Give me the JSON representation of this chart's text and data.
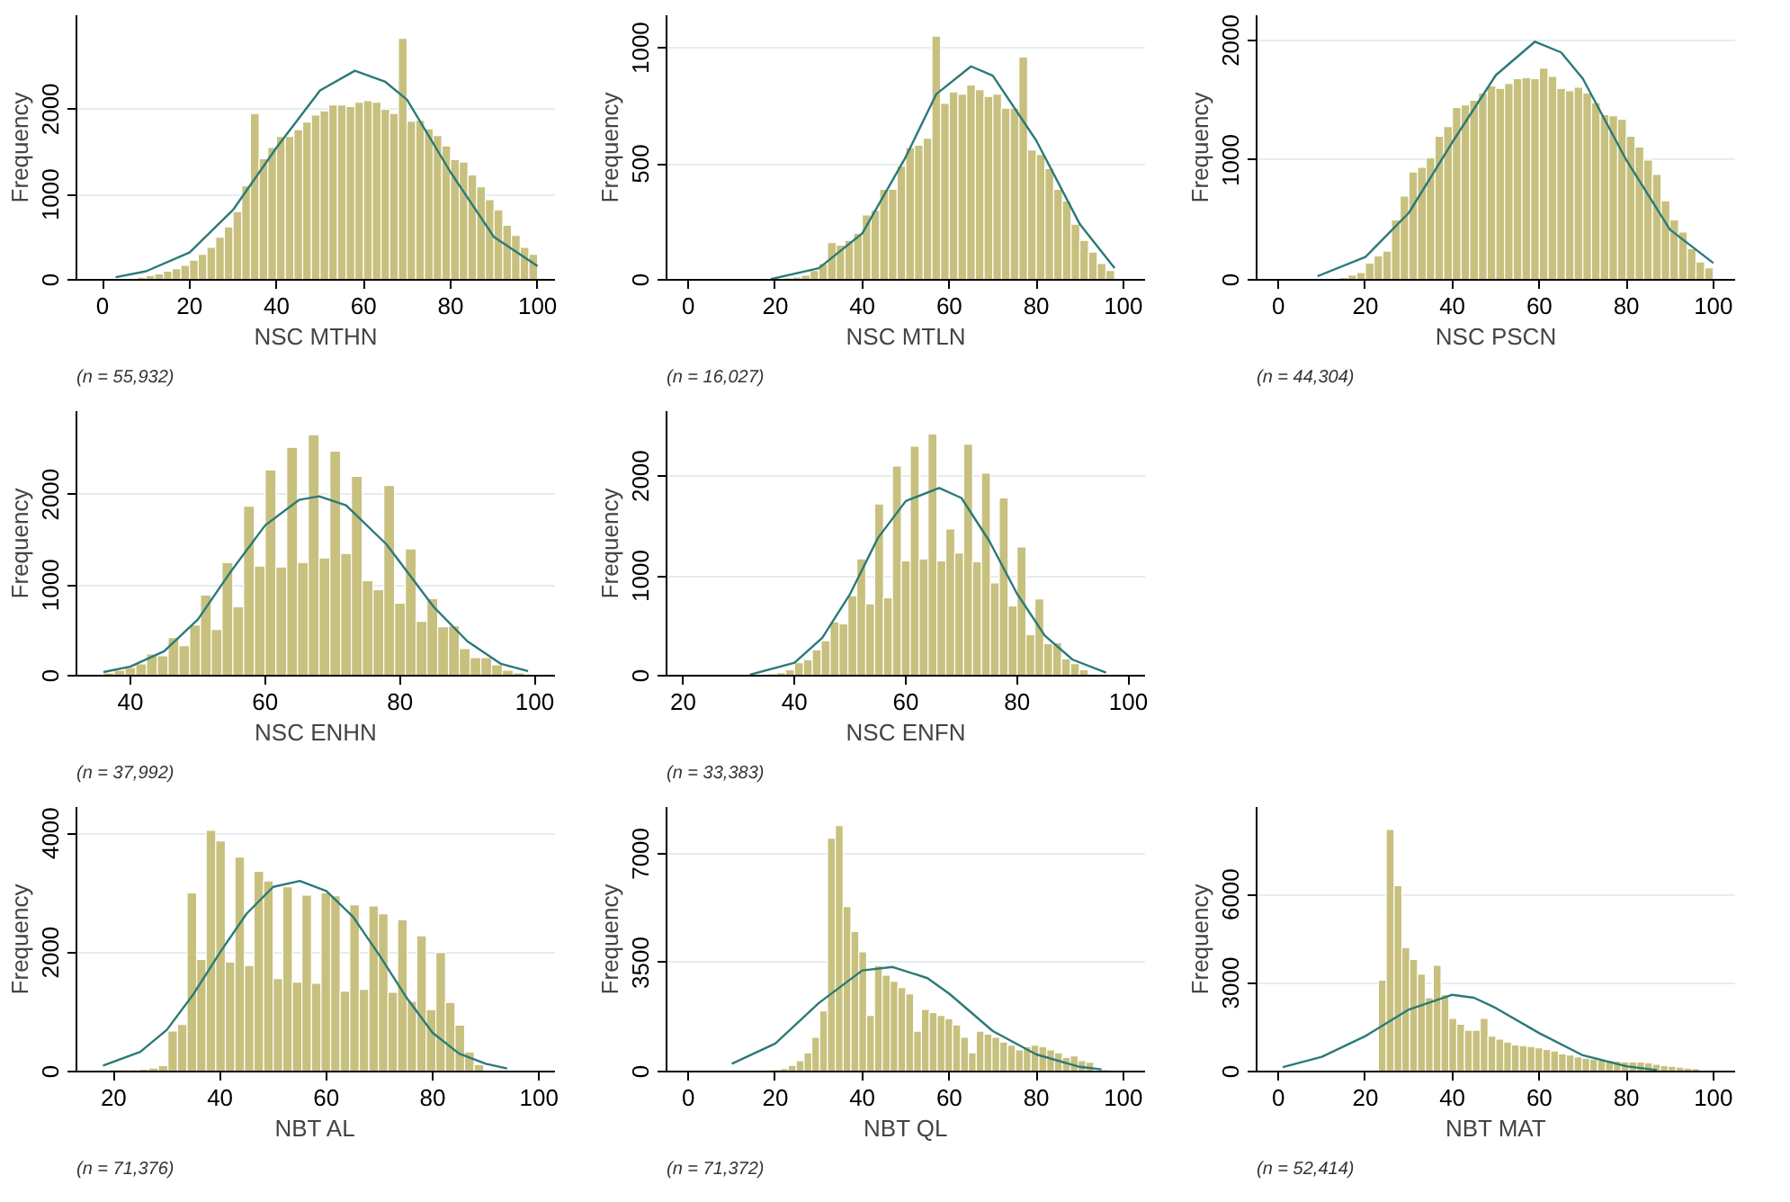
{
  "chart_data": [
    {
      "type": "histogram",
      "xlabel": "NSC MTHN",
      "ylabel": "Frequency",
      "annotations": [
        "(n = 55,932)"
      ],
      "xlim": [
        -6,
        104
      ],
      "ylim": [
        0,
        3100
      ],
      "xticks": [
        0,
        20,
        40,
        60,
        80,
        100
      ],
      "yticks": [
        0,
        1000,
        2000
      ],
      "grid": "y",
      "series": [
        {
          "type": "histogram",
          "color": "#c8c07e",
          "bins": [
            4,
            6,
            8,
            10,
            12,
            14,
            16,
            18,
            20,
            22,
            24,
            26,
            28,
            30,
            32,
            34,
            36,
            38,
            40,
            42,
            44,
            46,
            48,
            50,
            52,
            54,
            56,
            58,
            60,
            62,
            64,
            66,
            68,
            70,
            72,
            74,
            76,
            78,
            80,
            82,
            84,
            86,
            88,
            90,
            92,
            94,
            96,
            98,
            100
          ],
          "values": [
            10,
            null,
            30,
            50,
            70,
            100,
            130,
            170,
            230,
            300,
            380,
            500,
            620,
            800,
            1100,
            1950,
            1420,
            1550,
            1680,
            1680,
            1760,
            1850,
            1930,
            1980,
            2050,
            2050,
            2030,
            2080,
            2100,
            2080,
            2000,
            1950,
            2830,
            1860,
            1870,
            1770,
            1690,
            1570,
            1410,
            1380,
            1230,
            1090,
            940,
            820,
            640,
            520,
            380,
            300
          ]
        },
        {
          "type": "line",
          "color": "#2a7a78",
          "x": [
            3,
            10,
            20,
            30,
            40,
            50,
            58,
            65,
            70,
            80,
            90,
            100
          ],
          "values": [
            30,
            100,
            320,
            820,
            1550,
            2220,
            2450,
            2320,
            2110,
            1260,
            500,
            160
          ]
        }
      ]
    },
    {
      "type": "histogram",
      "xlabel": "NSC MTLN",
      "ylabel": "Frequency",
      "annotations": [
        "(n = 16,027)"
      ],
      "xlim": [
        -5,
        105
      ],
      "ylim": [
        0,
        1140
      ],
      "xticks": [
        0,
        20,
        40,
        60,
        80,
        100
      ],
      "yticks": [
        0,
        500,
        1000
      ],
      "grid": "y",
      "series": [
        {
          "type": "histogram",
          "color": "#c8c07e",
          "bins": [
            20,
            22,
            24,
            26,
            28,
            30,
            32,
            34,
            36,
            38,
            40,
            42,
            44,
            46,
            48,
            50,
            52,
            54,
            56,
            58,
            60,
            62,
            64,
            66,
            68,
            70,
            72,
            74,
            76,
            78,
            80,
            82,
            84,
            86,
            88,
            90,
            92,
            94,
            96,
            98
          ],
          "values": [
            3,
            8,
            12,
            20,
            40,
            70,
            160,
            150,
            170,
            200,
            280,
            300,
            390,
            390,
            490,
            570,
            580,
            610,
            1050,
            760,
            810,
            800,
            840,
            820,
            790,
            800,
            740,
            740,
            960,
            560,
            540,
            480,
            390,
            340,
            240,
            170,
            120,
            70,
            40
          ]
        },
        {
          "type": "line",
          "color": "#2a7a78",
          "x": [
            19,
            30,
            40,
            50,
            57,
            65,
            70,
            80,
            90,
            98
          ],
          "values": [
            3,
            50,
            200,
            530,
            800,
            920,
            880,
            600,
            240,
            50
          ]
        }
      ]
    },
    {
      "type": "histogram",
      "xlabel": "NSC PSCN",
      "ylabel": "Frequency",
      "annotations": [
        "(n = 44,304)"
      ],
      "xlim": [
        -5,
        105
      ],
      "ylim": [
        0,
        2210
      ],
      "xticks": [
        0,
        20,
        40,
        60,
        80,
        100
      ],
      "yticks": [
        0,
        1000,
        2000
      ],
      "grid": "y",
      "series": [
        {
          "type": "histogram",
          "color": "#c8c07e",
          "bins": [
            12,
            14,
            16,
            18,
            20,
            22,
            24,
            26,
            28,
            30,
            32,
            34,
            36,
            38,
            40,
            42,
            44,
            46,
            48,
            50,
            52,
            54,
            56,
            58,
            60,
            62,
            64,
            66,
            68,
            70,
            72,
            74,
            76,
            78,
            80,
            82,
            84,
            86,
            88,
            90,
            92,
            94,
            96,
            98,
            100
          ],
          "values": [
            10,
            20,
            40,
            60,
            140,
            200,
            240,
            500,
            700,
            900,
            940,
            1020,
            1200,
            1280,
            1440,
            1460,
            1500,
            1560,
            1620,
            1600,
            1640,
            1680,
            1690,
            1680,
            1770,
            1700,
            1600,
            1580,
            1610,
            1560,
            1480,
            1380,
            1370,
            1340,
            1200,
            1110,
            1000,
            880,
            660,
            500,
            400,
            260,
            150,
            100
          ]
        },
        {
          "type": "line",
          "color": "#2a7a78",
          "x": [
            9,
            20,
            30,
            40,
            50,
            59,
            65,
            70,
            80,
            90,
            100
          ],
          "values": [
            30,
            190,
            560,
            1150,
            1710,
            1990,
            1900,
            1680,
            1000,
            420,
            140
          ]
        }
      ]
    },
    {
      "type": "histogram",
      "xlabel": "NSC ENHN",
      "ylabel": "Frequency",
      "annotations": [
        "(n = 37,992)"
      ],
      "xlim": [
        32,
        103
      ],
      "ylim": [
        0,
        2920
      ],
      "xticks": [
        40,
        60,
        80,
        100
      ],
      "yticks": [
        0,
        1000,
        2000
      ],
      "grid": "y",
      "series": [
        {
          "type": "histogram",
          "color": "#c8c07e",
          "bins": [
            36,
            37.6,
            39.2,
            40.8,
            42.4,
            44,
            45.6,
            47.2,
            48.8,
            50.4,
            52,
            53.6,
            55.2,
            56.8,
            58.4,
            60,
            61.6,
            63.2,
            64.8,
            66.4,
            68,
            69.6,
            71.2,
            72.8,
            74.4,
            76,
            77.6,
            79.2,
            80.8,
            82.4,
            84,
            85.6,
            87.2,
            88.8,
            90.4,
            92,
            93.6,
            95.2,
            96.8,
            98.4
          ],
          "values": [
            30,
            60,
            90,
            130,
            240,
            220,
            420,
            330,
            560,
            890,
            510,
            1250,
            760,
            1870,
            1210,
            2270,
            1200,
            2520,
            1250,
            2660,
            1300,
            2480,
            1350,
            2200,
            1050,
            950,
            2100,
            800,
            1400,
            600,
            850,
            540,
            550,
            300,
            200,
            200,
            120,
            60,
            30
          ]
        },
        {
          "type": "line",
          "color": "#2a7a78",
          "x": [
            36,
            40,
            45,
            50,
            55,
            60,
            65,
            68,
            72,
            78,
            85,
            90,
            95,
            99
          ],
          "values": [
            40,
            100,
            270,
            620,
            1160,
            1660,
            1940,
            1980,
            1880,
            1450,
            760,
            380,
            130,
            50
          ]
        }
      ]
    },
    {
      "type": "histogram",
      "xlabel": "NSC ENFN",
      "ylabel": "Frequency",
      "annotations": [
        "(n = 33,383)"
      ],
      "xlim": [
        17,
        103
      ],
      "ylim": [
        0,
        2650
      ],
      "xticks": [
        20,
        40,
        60,
        80,
        100
      ],
      "yticks": [
        0,
        1000,
        2000
      ],
      "grid": "y",
      "series": [
        {
          "type": "histogram",
          "color": "#c8c07e",
          "bins": [
            33.6,
            35.2,
            36.8,
            38.4,
            40,
            41.6,
            43.2,
            44.8,
            46.4,
            48,
            49.6,
            51.2,
            52.8,
            54.4,
            56,
            57.6,
            59.2,
            60.8,
            62.4,
            64,
            65.6,
            67.2,
            68.8,
            70.4,
            72,
            73.6,
            75.2,
            76.8,
            78.4,
            80,
            81.6,
            83.2,
            84.8,
            86.4,
            88,
            89.6,
            91.2,
            92.8
          ],
          "values": [
            10,
            20,
            30,
            60,
            130,
            160,
            260,
            350,
            540,
            520,
            800,
            1170,
            720,
            1720,
            780,
            2100,
            1150,
            2300,
            1170,
            2420,
            1150,
            1470,
            1230,
            2320,
            1140,
            2030,
            930,
            1780,
            700,
            1290,
            410,
            770,
            320,
            330,
            170,
            120,
            60
          ]
        },
        {
          "type": "line",
          "color": "#2a7a78",
          "x": [
            32,
            40,
            45,
            50,
            55,
            60,
            66,
            70,
            75,
            80,
            85,
            90,
            96
          ],
          "values": [
            10,
            130,
            380,
            820,
            1380,
            1750,
            1880,
            1780,
            1350,
            820,
            400,
            160,
            30
          ]
        }
      ]
    },
    {
      "type": "histogram",
      "xlabel": "NBT AL",
      "ylabel": "Frequency",
      "annotations": [
        "(n = 71,376)"
      ],
      "xlim": [
        13,
        103
      ],
      "ylim": [
        0,
        4440
      ],
      "xticks": [
        20,
        40,
        60,
        80,
        100
      ],
      "yticks": [
        0,
        2000,
        4000
      ],
      "grid": "y",
      "series": [
        {
          "type": "histogram",
          "color": "#c8c07e",
          "bins": [
            19.4,
            21.2,
            23,
            24.8,
            26.6,
            28.4,
            30.2,
            32,
            33.8,
            35.6,
            37.4,
            39.2,
            41,
            42.8,
            44.6,
            46.4,
            48.2,
            50,
            51.8,
            53.6,
            55.4,
            57.2,
            59,
            60.8,
            62.6,
            64.4,
            66.2,
            68,
            69.8,
            71.6,
            73.4,
            75.2,
            77,
            78.8,
            80.6,
            82.4,
            84.2,
            86,
            87.8,
            89.6
          ],
          "values": [
            30,
            30,
            30,
            40,
            60,
            100,
            680,
            790,
            3000,
            1880,
            4050,
            3870,
            1840,
            3600,
            1780,
            3360,
            3200,
            1560,
            3100,
            1500,
            2960,
            1480,
            3000,
            2950,
            1350,
            2800,
            1380,
            2780,
            2650,
            1330,
            2550,
            1180,
            2280,
            1040,
            2000,
            1160,
            780,
            330,
            120
          ]
        },
        {
          "type": "line",
          "color": "#2a7a78",
          "x": [
            18,
            25,
            30,
            35,
            40,
            45,
            50,
            55,
            60,
            65,
            70,
            75,
            80,
            85,
            90,
            94
          ],
          "values": [
            100,
            330,
            700,
            1300,
            2000,
            2650,
            3100,
            3200,
            3030,
            2600,
            1950,
            1250,
            650,
            300,
            130,
            50
          ]
        }
      ]
    },
    {
      "type": "histogram",
      "xlabel": "NBT QL",
      "ylabel": "Frequency",
      "annotations": [
        "(n = 71,372)"
      ],
      "xlim": [
        -5,
        105
      ],
      "ylim": [
        0,
        8500
      ],
      "xticks": [
        0,
        20,
        40,
        60,
        80,
        100
      ],
      "yticks": [
        0,
        3500,
        7000
      ],
      "grid": "y",
      "series": [
        {
          "type": "histogram",
          "color": "#c8c07e",
          "bins": [
            17.6,
            19.4,
            21.2,
            23,
            24.8,
            26.6,
            28.4,
            30.2,
            32,
            33.8,
            35.6,
            37.4,
            39.2,
            41,
            42.8,
            44.6,
            46.4,
            48.2,
            50,
            51.8,
            53.6,
            55.4,
            57.2,
            59,
            60.8,
            62.6,
            64.4,
            66.2,
            68,
            69.8,
            71.6,
            73.4,
            75.2,
            77,
            78.8,
            80.6,
            82.4,
            84.2,
            86,
            87.8,
            89.6,
            91.4,
            93.2,
            95,
            96.8
          ],
          "values": [
            30,
            60,
            100,
            200,
            350,
            600,
            1100,
            1950,
            7500,
            7900,
            5300,
            4500,
            3850,
            1800,
            3400,
            3100,
            2900,
            2700,
            2500,
            1300,
            2000,
            1900,
            1800,
            1700,
            1500,
            1100,
            600,
            1300,
            1200,
            1100,
            950,
            850,
            700,
            800,
            850,
            800,
            700,
            600,
            450,
            500,
            350,
            300,
            null,
            60
          ]
        },
        {
          "type": "line",
          "color": "#2a7a78",
          "x": [
            10,
            20,
            30,
            40,
            47,
            55,
            60,
            70,
            80,
            90,
            95
          ],
          "values": [
            250,
            900,
            2200,
            3250,
            3360,
            3000,
            2500,
            1300,
            550,
            150,
            70
          ]
        }
      ]
    },
    {
      "type": "histogram",
      "xlabel": "NBT MAT",
      "ylabel": "Frequency",
      "annotations": [
        "(n = 52,414)"
      ],
      "xlim": [
        -5,
        105
      ],
      "ylim": [
        0,
        8960
      ],
      "xticks": [
        0,
        20,
        40,
        60,
        80,
        100
      ],
      "yticks": [
        0,
        3000,
        6000
      ],
      "grid": "y",
      "series": [
        {
          "type": "histogram",
          "color": "#c8c07e",
          "bins": [
            23,
            24.8,
            26.6,
            28.4,
            30.2,
            32,
            33.8,
            35.6,
            37.4,
            39.2,
            41,
            42.8,
            44.6,
            46.4,
            48.2,
            50,
            51.8,
            53.6,
            55.4,
            57.2,
            59,
            60.8,
            62.6,
            64.4,
            66.2,
            68,
            69.8,
            71.6,
            73.4,
            75.2,
            77,
            78.8,
            80.6,
            82.4,
            84.2,
            86,
            87.8,
            89.6,
            91.4,
            93.2,
            95,
            96.8
          ],
          "values": [
            3100,
            8200,
            6300,
            4200,
            3800,
            3300,
            2500,
            3600,
            2600,
            1800,
            1600,
            1400,
            1400,
            1800,
            1200,
            1100,
            1000,
            900,
            880,
            850,
            800,
            750,
            700,
            600,
            560,
            500,
            450,
            420,
            400,
            380,
            350,
            330,
            330,
            320,
            300,
            250,
            200,
            180,
            150,
            120,
            100
          ]
        },
        {
          "type": "line",
          "color": "#2a7a78",
          "x": [
            1,
            10,
            20,
            30,
            40,
            45,
            50,
            60,
            70,
            80,
            87
          ],
          "values": [
            150,
            500,
            1200,
            2100,
            2600,
            2500,
            2150,
            1300,
            550,
            180,
            50
          ]
        }
      ]
    }
  ]
}
